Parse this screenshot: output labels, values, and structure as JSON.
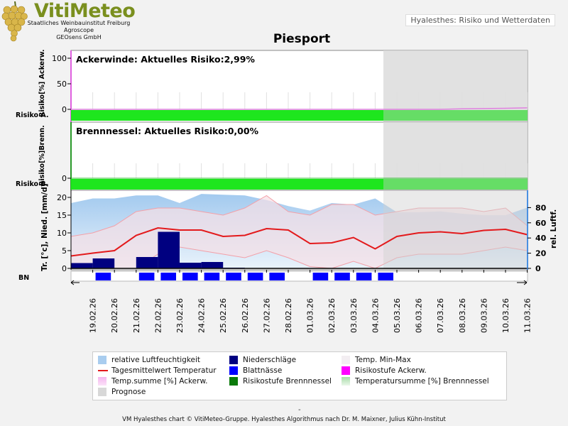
{
  "header": {
    "brand": "VitiMeteo",
    "org_lines": [
      "Staatliches Weinbauinstitut Freiburg",
      "Agroscope",
      "GEOsens GmbH"
    ],
    "app_name": "Hyalesthes: Risiko und Wetterdaten"
  },
  "chart_title": "Piesport",
  "chart_data": [
    {
      "type": "area",
      "title": "Ackerwinde: Aktuelles Risiko:2,99%",
      "ylabel": "Risiko[%] Ackerw.",
      "side_label": "Risiko A.",
      "ylim": [
        0,
        100
      ],
      "yticks": [
        0,
        50,
        100
      ],
      "series": [
        {
          "name": "Temp.summe [%] Ackerw.",
          "values": [
            0,
            0,
            0,
            0,
            0,
            0,
            0,
            0,
            0,
            0,
            0,
            0,
            0,
            0,
            0,
            0,
            0,
            0,
            1,
            1.5,
            2,
            3
          ]
        }
      ],
      "risk_band": "Risikostufe Ackerw."
    },
    {
      "type": "area",
      "title": "Brennnessel: Aktuelles Risiko:0,00%",
      "ylabel": "Risiko[%]Brenn.",
      "side_label": "Risiko B.",
      "ylim": [
        0,
        100
      ],
      "yticks": [
        0
      ],
      "series": [
        {
          "name": "Temperatursumme [%] Brennnessel",
          "values": [
            0,
            0,
            0,
            0,
            0,
            0,
            0,
            0,
            0,
            0,
            0,
            0,
            0,
            0,
            0,
            0,
            0,
            0,
            0,
            0,
            0,
            0
          ]
        }
      ],
      "risk_band": "Risikostufe Brennnessel"
    },
    {
      "type": "line",
      "ylabel": "Tr. [°c], Nied. [mm/d]",
      "y2label": "rel. Luftf.",
      "ylim": [
        0,
        20
      ],
      "yticks": [
        0,
        5,
        10,
        15,
        20
      ],
      "y2lim": [
        -12,
        100
      ],
      "y2ticks": [
        0,
        20,
        40,
        60,
        80
      ],
      "blattnaesse_label": "BN",
      "prognose_from_index": 14,
      "categories": [
        "19.02.26",
        "20.02.26",
        "21.02.26",
        "22.02.26",
        "23.02.26",
        "24.02.26",
        "25.02.26",
        "26.02.26",
        "27.02.26",
        "28.02.26",
        "01.03.26",
        "02.03.26",
        "03.03.26",
        "04.03.26",
        "05.03.26",
        "06.03.26",
        "07.03.26",
        "08.03.26",
        "09.03.26",
        "10.03.26",
        "11.03.26"
      ],
      "x_start": "18.02.26",
      "series": [
        {
          "name": "Tagesmittelwert Temperatur",
          "x": [
            0,
            1,
            2,
            3,
            4,
            5,
            6,
            7,
            8,
            9,
            10,
            11,
            12,
            13,
            14,
            15,
            16,
            17,
            18,
            19,
            20,
            21
          ],
          "values": [
            3.5,
            4.3,
            5.0,
            9.3,
            11.4,
            10.8,
            10.8,
            9.0,
            9.3,
            11.2,
            10.8,
            7.0,
            7.2,
            8.7,
            5.5,
            9.0,
            10.0,
            10.3,
            9.8,
            10.7,
            11.0,
            9.5
          ]
        },
        {
          "name": "Temp. Min-Max max",
          "x": [
            0,
            1,
            2,
            3,
            4,
            5,
            6,
            7,
            8,
            9,
            10,
            11,
            12,
            13,
            14,
            15,
            16,
            17,
            18,
            19,
            20,
            21
          ],
          "values": [
            9,
            10,
            12,
            16,
            17,
            17,
            16,
            15,
            17,
            20.5,
            16,
            15,
            18,
            18,
            15,
            16,
            17,
            17,
            17,
            16,
            17,
            12
          ]
        },
        {
          "name": "Temp. Min-Max min",
          "x": [
            0,
            1,
            2,
            3,
            4,
            5,
            6,
            7,
            8,
            9,
            10,
            11,
            12,
            13,
            14,
            15,
            16,
            17,
            18,
            19,
            20,
            21
          ],
          "values": [
            1,
            0,
            0,
            0,
            4,
            6,
            5,
            4,
            3,
            5,
            3,
            0.5,
            0,
            2,
            0,
            3,
            4,
            4,
            4,
            5,
            6,
            5
          ]
        },
        {
          "name": "relative Luftfeuchtigkeit",
          "x": [
            0,
            1,
            2,
            3,
            4,
            5,
            6,
            7,
            8,
            9,
            10,
            11,
            12,
            13,
            14,
            15,
            16,
            17,
            18,
            19,
            20,
            21
          ],
          "values": [
            86,
            92,
            92,
            96,
            96,
            86,
            98,
            97,
            96,
            90,
            82,
            76,
            86,
            84,
            92,
            74,
            74,
            75,
            72,
            70,
            70,
            80
          ]
        },
        {
          "name": "Niederschläge",
          "x": [
            0,
            1,
            2,
            3,
            4,
            5,
            6,
            7,
            8,
            9,
            10,
            11,
            12,
            13,
            14,
            15,
            16,
            17,
            18,
            19,
            20,
            21
          ],
          "values": [
            1.5,
            2.8,
            0,
            3.2,
            10.3,
            1.6,
            1.8,
            0.2,
            0,
            0,
            0,
            0,
            0,
            0,
            0,
            0,
            0,
            0,
            0,
            0,
            0,
            0
          ]
        }
      ],
      "blattnaesse": [
        0,
        1,
        0,
        1,
        1,
        1,
        1,
        1,
        1,
        1,
        0,
        1,
        1,
        1,
        1,
        0,
        0,
        0,
        0,
        0,
        0,
        0
      ]
    }
  ],
  "legend": {
    "items": [
      {
        "label": "relative Luftfeuchtigkeit",
        "color": "#a9cdef",
        "kind": "box"
      },
      {
        "label": "Niederschläge",
        "color": "#000080",
        "kind": "box"
      },
      {
        "label": "Temp. Min-Max",
        "color": "#f3eef2",
        "kind": "box"
      },
      {
        "label": "Tagesmittelwert Temperatur",
        "color": "#e31a1c",
        "kind": "line"
      },
      {
        "label": "Blattnässe",
        "color": "#0000ff",
        "kind": "box"
      },
      {
        "label": "Risikostufe Ackerw.",
        "color": "#ff00ff",
        "kind": "box"
      },
      {
        "label": "Temp.summe [%] Ackerw.",
        "color": "#f5b6f0",
        "kind": "box"
      },
      {
        "label": "Risikostufe Brennnessel",
        "color": "#0b7a0b",
        "kind": "box"
      },
      {
        "label": "Temperatursumme [%] Brennnessel",
        "color": "#c3e9c3",
        "kind": "box"
      },
      {
        "label": "Prognose",
        "color": "#d8d8d8",
        "kind": "box"
      }
    ]
  },
  "colors": {
    "risk_green": "#1ee61e",
    "prognose": "#dcdcdc",
    "temp_line": "#e31a1c",
    "rain": "#000080",
    "bn": "#0000ff"
  },
  "footer": {
    "dash": "-",
    "credit": "VM Hyalesthes chart © VitiMeteo-Gruppe. Hyalesthes Algorithmus nach Dr. M. Maixner, Julius Kühn-Institut"
  }
}
